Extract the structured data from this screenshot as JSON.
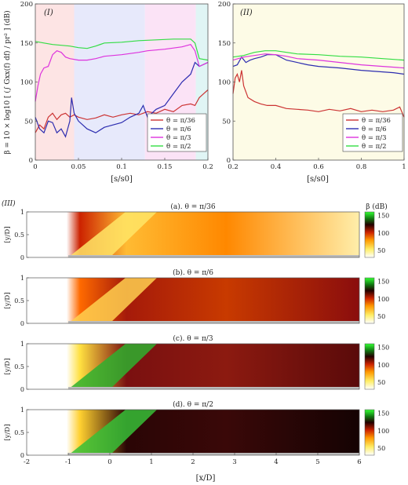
{
  "chart_data": [
    {
      "id": "I",
      "type": "line",
      "panel_label": "(I)",
      "xlabel": "[s/s0]",
      "ylabel": "β = 10 × log10 [ (∫ Gxx(f) df) / pr² ] (dB)",
      "xlim": [
        0,
        0.2
      ],
      "ylim": [
        0,
        200
      ],
      "xticks": [
        "0",
        "0.05",
        "0.1",
        "0.15",
        "0.2"
      ],
      "yticks": [
        "0",
        "50",
        "100",
        "150",
        "200"
      ],
      "grid": false,
      "legend": "bottom-right",
      "background_bands": [
        {
          "x0": 0.0,
          "x1": 0.045,
          "color": "#fde4e4"
        },
        {
          "x0": 0.045,
          "x1": 0.127,
          "color": "#e7e9fb"
        },
        {
          "x0": 0.127,
          "x1": 0.186,
          "color": "#fbe3f6"
        },
        {
          "x0": 0.186,
          "x1": 0.2,
          "color": "#e0f5f5"
        }
      ],
      "series": [
        {
          "name": "θ = π/36",
          "color": "#cc3333",
          "x": [
            0.0,
            0.005,
            0.01,
            0.015,
            0.02,
            0.025,
            0.03,
            0.035,
            0.04,
            0.045,
            0.05,
            0.06,
            0.07,
            0.08,
            0.09,
            0.1,
            0.11,
            0.12,
            0.13,
            0.14,
            0.15,
            0.16,
            0.17,
            0.18,
            0.185,
            0.19,
            0.195,
            0.2
          ],
          "y": [
            35,
            45,
            40,
            55,
            60,
            52,
            58,
            60,
            55,
            58,
            55,
            52,
            54,
            58,
            55,
            58,
            60,
            58,
            62,
            60,
            65,
            62,
            70,
            72,
            70,
            80,
            85,
            90
          ]
        },
        {
          "name": "θ = π/6",
          "color": "#2d2db0",
          "x": [
            0.0,
            0.005,
            0.01,
            0.015,
            0.02,
            0.025,
            0.03,
            0.035,
            0.04,
            0.042,
            0.045,
            0.05,
            0.06,
            0.07,
            0.08,
            0.09,
            0.1,
            0.11,
            0.12,
            0.125,
            0.13,
            0.14,
            0.15,
            0.16,
            0.17,
            0.18,
            0.185,
            0.19,
            0.2
          ],
          "y": [
            55,
            40,
            35,
            50,
            48,
            35,
            40,
            30,
            50,
            80,
            60,
            50,
            40,
            35,
            42,
            45,
            48,
            55,
            60,
            70,
            55,
            65,
            70,
            85,
            100,
            110,
            125,
            120,
            125
          ]
        },
        {
          "name": "θ = π/3",
          "color": "#dd33dd",
          "x": [
            0.0,
            0.003,
            0.006,
            0.01,
            0.015,
            0.02,
            0.025,
            0.03,
            0.035,
            0.04,
            0.05,
            0.06,
            0.07,
            0.08,
            0.1,
            0.12,
            0.13,
            0.15,
            0.17,
            0.18,
            0.185,
            0.19,
            0.2
          ],
          "y": [
            75,
            95,
            110,
            118,
            120,
            135,
            140,
            138,
            132,
            130,
            128,
            128,
            130,
            133,
            135,
            138,
            140,
            142,
            145,
            148,
            140,
            120,
            125
          ]
        },
        {
          "name": "θ = π/2",
          "color": "#33dd44",
          "x": [
            0.0,
            0.01,
            0.02,
            0.03,
            0.04,
            0.05,
            0.06,
            0.07,
            0.08,
            0.1,
            0.12,
            0.14,
            0.16,
            0.18,
            0.185,
            0.19,
            0.2
          ],
          "y": [
            152,
            150,
            148,
            147,
            146,
            144,
            143,
            146,
            150,
            151,
            153,
            154,
            155,
            155,
            150,
            130,
            128
          ]
        }
      ]
    },
    {
      "id": "II",
      "type": "line",
      "panel_label": "(II)",
      "xlabel": "[s/s0]",
      "ylabel": "",
      "xlim": [
        0.2,
        1.0
      ],
      "ylim": [
        0,
        200
      ],
      "xticks": [
        "0.2",
        "0.4",
        "0.6",
        "0.8",
        "1"
      ],
      "yticks": [
        "0",
        "50",
        "100",
        "150",
        "200"
      ],
      "grid": false,
      "legend": "bottom-right",
      "background_bands": [
        {
          "x0": 0.2,
          "x1": 1.0,
          "color": "#fdfbe6"
        }
      ],
      "series": [
        {
          "name": "θ = π/36",
          "color": "#cc3333",
          "x": [
            0.2,
            0.21,
            0.22,
            0.23,
            0.24,
            0.25,
            0.27,
            0.3,
            0.33,
            0.36,
            0.4,
            0.45,
            0.5,
            0.55,
            0.6,
            0.65,
            0.7,
            0.75,
            0.8,
            0.85,
            0.9,
            0.95,
            0.98,
            1.0
          ],
          "y": [
            85,
            105,
            110,
            100,
            115,
            95,
            80,
            75,
            72,
            70,
            70,
            66,
            65,
            64,
            62,
            65,
            63,
            66,
            62,
            64,
            62,
            64,
            68,
            55
          ]
        },
        {
          "name": "θ = π/6",
          "color": "#2d2db0",
          "x": [
            0.2,
            0.22,
            0.24,
            0.26,
            0.28,
            0.3,
            0.33,
            0.36,
            0.4,
            0.45,
            0.5,
            0.55,
            0.6,
            0.7,
            0.8,
            0.9,
            0.95,
            1.0
          ],
          "y": [
            120,
            122,
            132,
            125,
            128,
            130,
            132,
            135,
            135,
            128,
            125,
            122,
            120,
            118,
            115,
            113,
            112,
            110
          ]
        },
        {
          "name": "θ = π/3",
          "color": "#dd33dd",
          "x": [
            0.2,
            0.25,
            0.3,
            0.35,
            0.4,
            0.45,
            0.5,
            0.6,
            0.7,
            0.8,
            0.9,
            1.0
          ],
          "y": [
            128,
            132,
            134,
            136,
            135,
            133,
            130,
            128,
            125,
            122,
            120,
            118
          ]
        },
        {
          "name": "θ = π/2",
          "color": "#33dd44",
          "x": [
            0.2,
            0.25,
            0.3,
            0.35,
            0.4,
            0.45,
            0.5,
            0.6,
            0.7,
            0.8,
            0.9,
            1.0
          ],
          "y": [
            132,
            134,
            138,
            140,
            140,
            138,
            136,
            135,
            133,
            132,
            130,
            128
          ]
        }
      ]
    },
    {
      "id": "III",
      "type": "heatmap",
      "panel_label": "(III)",
      "xlabel": "[x/D]",
      "ylabel": "[y/D]",
      "xlim": [
        -2,
        6
      ],
      "ylim": [
        0,
        1
      ],
      "xticks": [
        "-2",
        "-1",
        "0",
        "1",
        "2",
        "3",
        "4",
        "5",
        "6"
      ],
      "yticks": [
        "0",
        "0.5",
        "1"
      ],
      "colorbar": {
        "label": "β (dB)",
        "ticks": [
          "50",
          "100",
          "150"
        ],
        "range": [
          30,
          160
        ]
      },
      "subplots": [
        {
          "title": "(a). θ = π/36",
          "theme": "yellow"
        },
        {
          "title": "(b). θ = π/6",
          "theme": "red"
        },
        {
          "title": "(c). θ = π/3",
          "theme": "green-red"
        },
        {
          "title": "(d). θ = π/2",
          "theme": "green-dark"
        }
      ]
    }
  ]
}
